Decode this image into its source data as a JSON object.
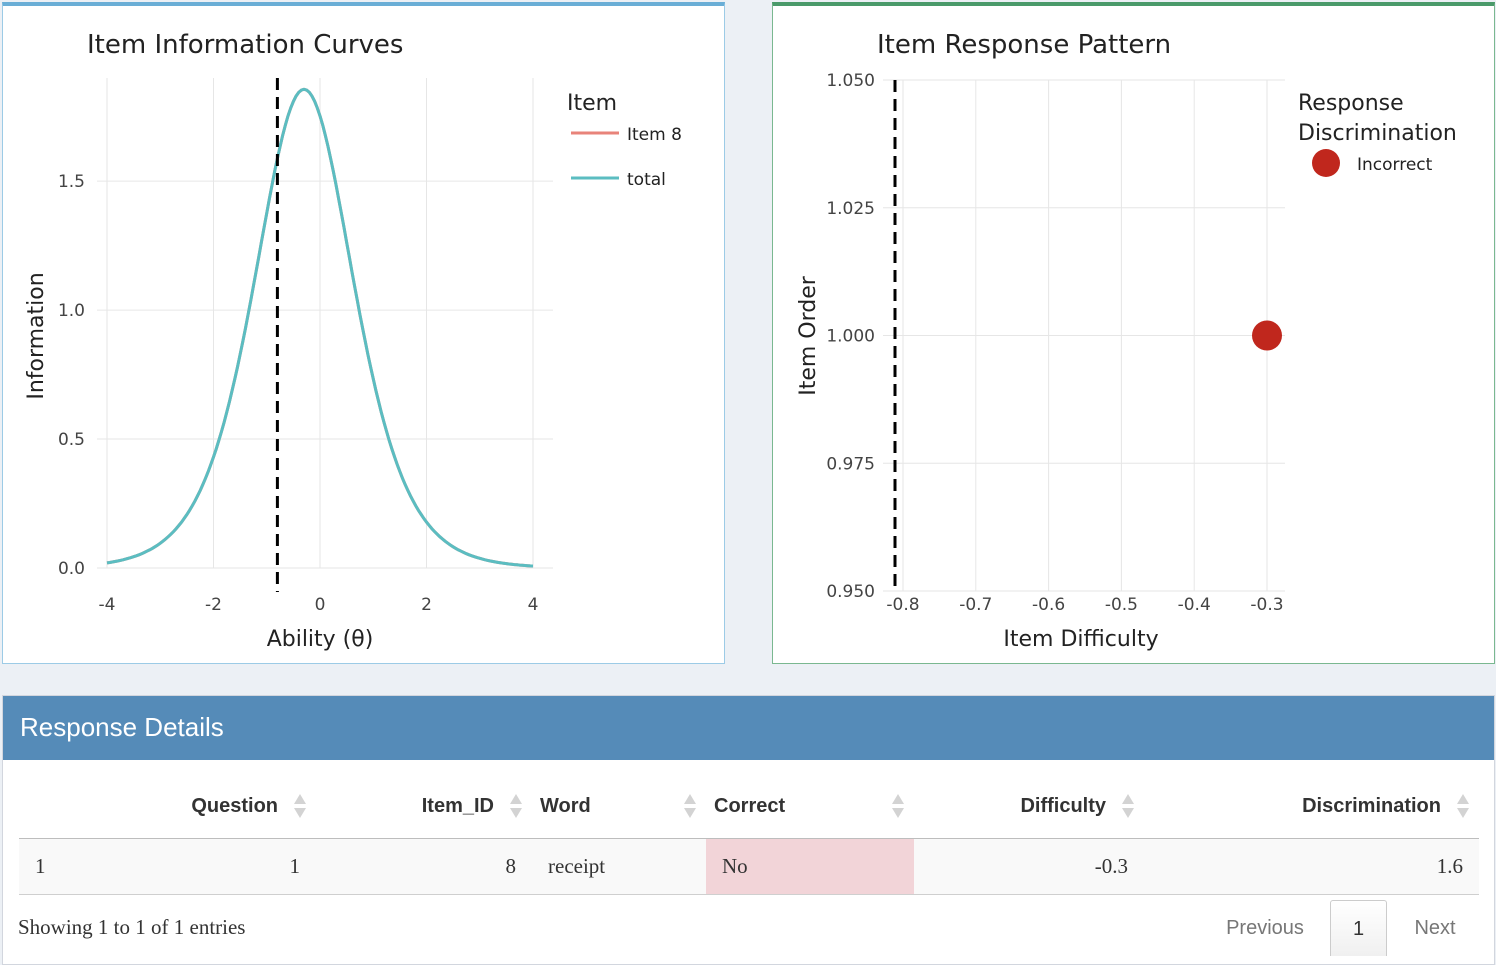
{
  "left_chart": {
    "title": "Item Information Curves",
    "xlabel": "Ability (θ)",
    "ylabel": "Information",
    "x_ticks": [
      "-4",
      "-2",
      "0",
      "2",
      "4"
    ],
    "y_ticks": [
      "0.0",
      "0.5",
      "1.0",
      "1.5"
    ],
    "legend_title": "Item",
    "legend_items": [
      "Item 8",
      "total"
    ],
    "colors": {
      "item8": "#e8837a",
      "total": "#5bbdc1"
    }
  },
  "right_chart": {
    "title": "Item Response Pattern",
    "xlabel": "Item Difficulty",
    "ylabel": "Item Order",
    "x_ticks": [
      "-0.8",
      "-0.7",
      "-0.6",
      "-0.5",
      "-0.4",
      "-0.3"
    ],
    "y_ticks": [
      "0.950",
      "0.975",
      "1.000",
      "1.025",
      "1.050"
    ],
    "legend_title_1": "Response",
    "legend_title_2": "Discrimination",
    "legend_item": "Incorrect",
    "colors": {
      "incorrect": "#c0271d"
    }
  },
  "chart_data": [
    {
      "type": "line",
      "title": "Item Information Curves",
      "xlabel": "Ability (θ)",
      "ylabel": "Information",
      "xlim": [
        -4,
        4
      ],
      "ylim": [
        0,
        1.9
      ],
      "series": [
        {
          "name": "Item 8",
          "a": 1.6,
          "b": -0.3
        },
        {
          "name": "total",
          "a": 1.6,
          "b": -0.3
        }
      ],
      "vline": -0.8
    },
    {
      "type": "scatter",
      "title": "Item Response Pattern",
      "xlabel": "Item Difficulty",
      "ylabel": "Item Order",
      "xlim": [
        -0.8,
        -0.3
      ],
      "ylim": [
        0.95,
        1.05
      ],
      "points": [
        {
          "x": -0.3,
          "y": 1.0,
          "response": "Incorrect",
          "discrimination": 1.6
        }
      ],
      "vline": -0.8
    }
  ],
  "details": {
    "header": "Response Details",
    "columns": [
      "",
      "Question",
      "Item_ID",
      "Word",
      "Correct",
      "Difficulty",
      "Discrimination"
    ],
    "rows": [
      [
        "1",
        "1",
        "8",
        "receipt",
        "No",
        "-0.3",
        "1.6"
      ]
    ],
    "info": "Showing 1 to 1 of 1 entries",
    "prev": "Previous",
    "page": "1",
    "next": "Next"
  }
}
